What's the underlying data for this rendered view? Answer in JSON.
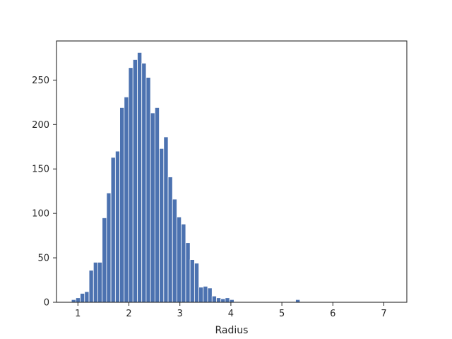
{
  "chart_data": {
    "type": "bar",
    "title": "",
    "xlabel": "Radius",
    "ylabel": "",
    "xlim": [
      0.58,
      7.45
    ],
    "ylim": [
      0,
      294
    ],
    "xticks": [
      1,
      2,
      3,
      4,
      5,
      6,
      7
    ],
    "yticks": [
      0,
      50,
      100,
      150,
      200,
      250
    ],
    "grid": false,
    "legend": "none",
    "bin_width": 0.0862,
    "bar_color": "#4c72b0",
    "series": [
      {
        "x": [
          0.873,
          0.959,
          1.045,
          1.131,
          1.218,
          1.304,
          1.39,
          1.476,
          1.562,
          1.648,
          1.735,
          1.821,
          1.907,
          1.993,
          2.079,
          2.166,
          2.252,
          2.338,
          2.424,
          2.51,
          2.597,
          2.683,
          2.769,
          2.855,
          2.941,
          3.028,
          3.114,
          3.2,
          3.286,
          3.372,
          3.458,
          3.545,
          3.631,
          3.717,
          3.803,
          3.889,
          3.976,
          4.062,
          4.148,
          4.234,
          4.32,
          4.407,
          4.493,
          4.579,
          4.665,
          4.751,
          4.837,
          5.269
        ],
        "values": [
          3,
          5,
          10,
          12,
          36,
          45,
          45,
          95,
          123,
          163,
          170,
          219,
          231,
          264,
          273,
          281,
          269,
          253,
          213,
          219,
          173,
          186,
          141,
          116,
          96,
          88,
          67,
          48,
          44,
          17,
          18,
          16,
          7,
          5,
          4,
          5,
          3,
          0,
          0,
          0,
          0,
          0,
          0,
          0,
          0,
          0,
          0,
          3
        ]
      }
    ]
  }
}
